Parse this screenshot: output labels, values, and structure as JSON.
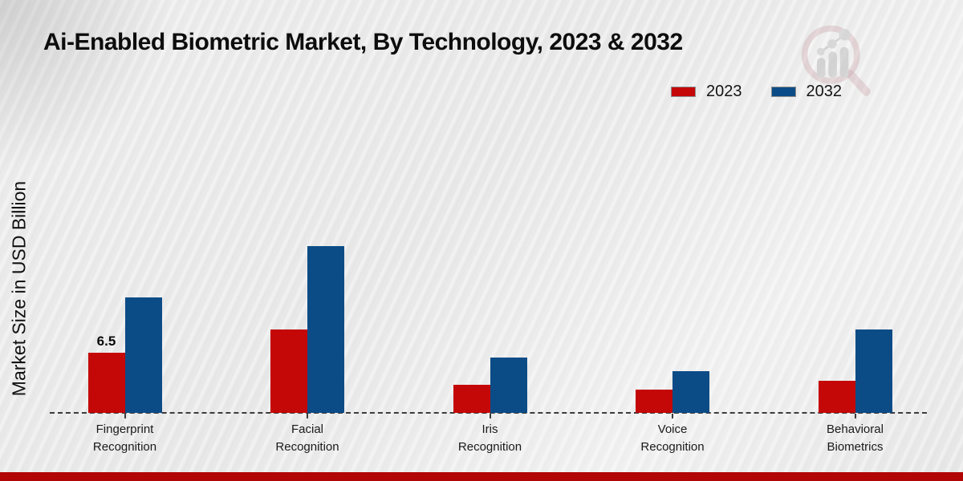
{
  "page": {
    "title": "Ai-Enabled Biometric Market, By Technology, 2023 & 2032",
    "y_axis_label": "Market Size in USD Billion",
    "footer_band_color": "#b20505",
    "logo_icon": "magnifier-bar-chart-logo"
  },
  "chart_data": {
    "type": "bar",
    "title": "Ai-Enabled Biometric Market, By Technology, 2023 & 2032",
    "ylabel": "Market Size in USD Billion",
    "xlabel": "",
    "ylim": [
      0,
      20
    ],
    "grid": false,
    "legend_position": "top-right",
    "baseline_style": "dashed",
    "categories": [
      "Fingerprint Recognition",
      "Facial Recognition",
      "Iris Recognition",
      "Voice Recognition",
      "Behavioral Biometrics"
    ],
    "category_label_lines": [
      [
        "Fingerprint",
        "Recognition"
      ],
      [
        "Facial",
        "Recognition"
      ],
      [
        "Iris",
        "Recognition"
      ],
      [
        "Voice",
        "Recognition"
      ],
      [
        "Behavioral",
        "Biometrics"
      ]
    ],
    "series": [
      {
        "name": "2023",
        "color": "#c40707",
        "values": [
          6.5,
          9.0,
          3.0,
          2.5,
          3.5
        ]
      },
      {
        "name": "2032",
        "color": "#0c4c86",
        "values": [
          12.5,
          18.0,
          6.0,
          4.5,
          9.0
        ]
      }
    ],
    "annotations": [
      {
        "category_index": 0,
        "series_index": 0,
        "text": "6.5"
      }
    ]
  }
}
